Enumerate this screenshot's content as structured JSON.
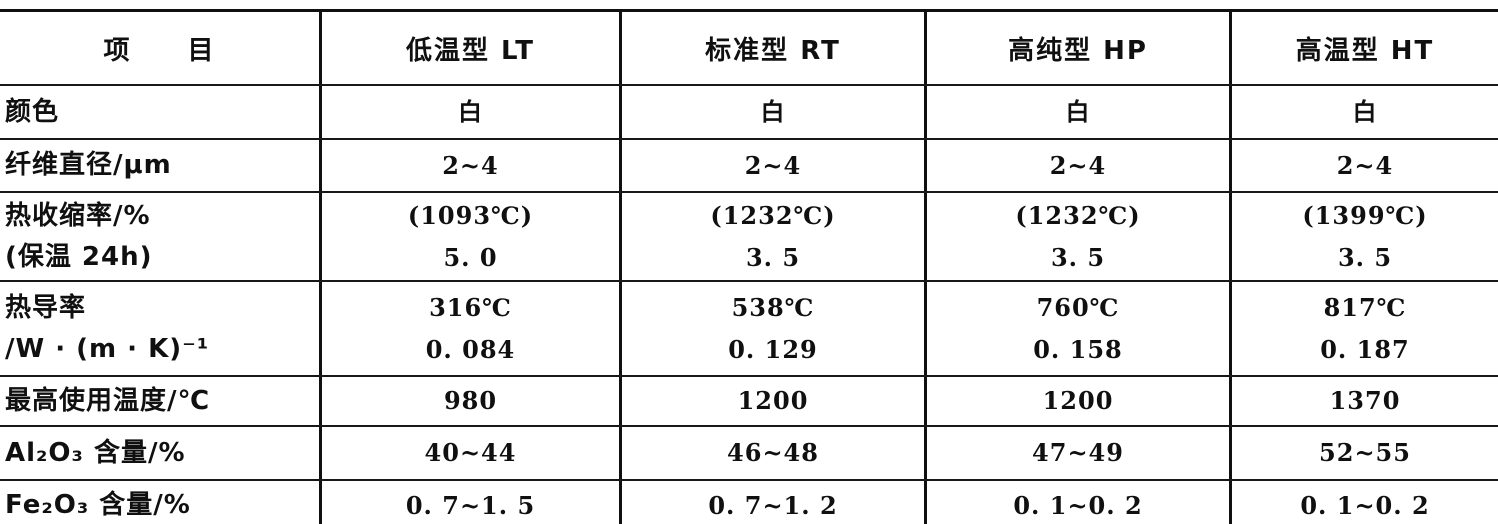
{
  "table": {
    "headers": {
      "item": "项　　目",
      "lt": "低温型 LT",
      "rt": "标准型 RT",
      "hp": "高纯型 HP",
      "ht": "高温型 HT"
    },
    "rows": [
      {
        "label": "颜色",
        "values": [
          "白",
          "白",
          "白",
          "白"
        ]
      },
      {
        "label": "纤维直径/μm",
        "values": [
          "2~4",
          "2~4",
          "2~4",
          "2~4"
        ]
      },
      {
        "label": "热收缩率/%\n(保温 24h)",
        "values": [
          "(1093℃)\n5. 0",
          "(1232℃)\n3. 5",
          "(1232℃)\n3. 5",
          "(1399℃)\n3. 5"
        ]
      },
      {
        "label": "热导率\n/W · (m · K)⁻¹",
        "values": [
          "316℃\n0. 084",
          "538℃\n0. 129",
          "760℃\n0. 158",
          "817℃\n0. 187"
        ]
      },
      {
        "label": "最高使用温度/℃",
        "values": [
          "980",
          "1200",
          "1200",
          "1370"
        ]
      },
      {
        "label": "Al₂O₃ 含量/%",
        "values": [
          "40~44",
          "46~48",
          "47~49",
          "52~55"
        ]
      },
      {
        "label": "Fe₂O₃ 含量/%",
        "values": [
          "0. 7~1. 5",
          "0. 7~1. 2",
          "0. 1~0. 2",
          "0. 1~0. 2"
        ]
      }
    ],
    "colors": {
      "ink": "#101010",
      "paper": "#ffffff"
    }
  }
}
